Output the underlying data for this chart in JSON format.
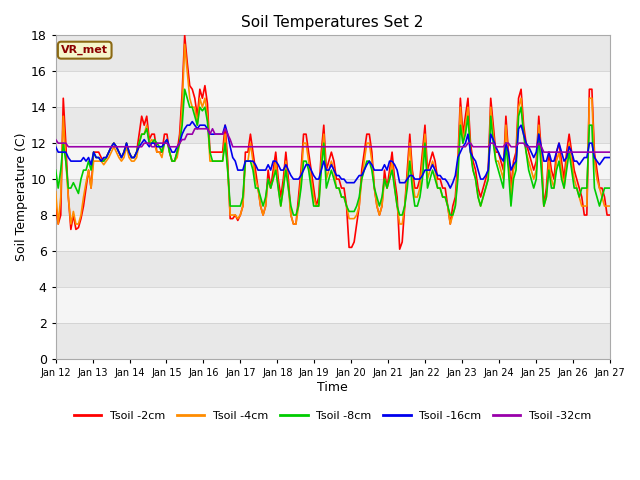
{
  "title": "Soil Temperatures Set 2",
  "xlabel": "Time",
  "ylabel": "Soil Temperature (C)",
  "ylim": [
    0,
    18
  ],
  "x_tick_labels": [
    "Jan 12",
    "Jan 13",
    "Jan 14",
    "Jan 15",
    "Jan 16",
    "Jan 17",
    "Jan 18",
    "Jan 19",
    "Jan 20",
    "Jan 21",
    "Jan 22",
    "Jan 23",
    "Jan 24",
    "Jan 25",
    "Jan 26",
    "Jan 27"
  ],
  "annotation": "VR_met",
  "colors": {
    "Tsoil -2cm": "#ff0000",
    "Tsoil -4cm": "#ff8c00",
    "Tsoil -8cm": "#00cc00",
    "Tsoil -16cm": "#0000ee",
    "Tsoil -32cm": "#9900aa"
  },
  "tsoil_2cm": [
    8.5,
    7.5,
    8.0,
    14.5,
    12.0,
    9.0,
    7.2,
    8.0,
    7.2,
    7.3,
    7.8,
    8.5,
    9.5,
    10.5,
    9.5,
    11.5,
    11.5,
    11.5,
    11.2,
    11.0,
    11.2,
    11.5,
    11.8,
    12.0,
    11.8,
    11.5,
    11.2,
    11.5,
    12.0,
    11.5,
    11.2,
    11.2,
    11.5,
    12.5,
    13.5,
    13.0,
    13.5,
    12.2,
    12.5,
    12.5,
    11.5,
    11.5,
    11.5,
    12.5,
    12.5,
    11.5,
    11.0,
    11.0,
    11.5,
    12.5,
    14.8,
    18.0,
    16.5,
    15.2,
    15.0,
    14.5,
    13.5,
    15.0,
    14.5,
    15.2,
    14.2,
    11.5,
    11.5,
    11.5,
    11.5,
    11.5,
    11.5,
    13.0,
    11.0,
    7.8,
    7.8,
    8.0,
    7.7,
    8.0,
    8.5,
    11.5,
    11.5,
    12.5,
    11.5,
    10.5,
    9.5,
    8.5,
    8.0,
    8.5,
    10.5,
    9.5,
    10.5,
    11.5,
    10.0,
    9.0,
    10.0,
    11.5,
    10.0,
    8.0,
    7.5,
    7.5,
    9.0,
    10.5,
    12.5,
    12.5,
    11.5,
    10.5,
    9.5,
    8.5,
    9.0,
    11.5,
    13.0,
    10.5,
    11.0,
    11.5,
    11.0,
    10.0,
    10.0,
    9.5,
    9.5,
    8.5,
    6.2,
    6.2,
    6.5,
    7.5,
    8.5,
    10.5,
    11.5,
    12.5,
    12.5,
    11.5,
    9.5,
    8.5,
    8.0,
    8.5,
    10.5,
    9.5,
    10.5,
    11.5,
    10.0,
    9.0,
    6.1,
    6.5,
    8.5,
    10.5,
    12.5,
    10.5,
    9.5,
    9.5,
    10.0,
    11.5,
    13.0,
    10.5,
    11.0,
    11.5,
    11.0,
    10.0,
    10.0,
    9.5,
    9.5,
    8.5,
    7.5,
    8.5,
    9.0,
    11.0,
    14.5,
    12.5,
    13.5,
    14.5,
    12.0,
    11.0,
    10.5,
    9.5,
    9.0,
    9.5,
    10.0,
    10.5,
    14.5,
    13.0,
    11.5,
    11.5,
    11.0,
    10.5,
    13.5,
    11.5,
    9.5,
    11.0,
    11.5,
    14.5,
    15.0,
    13.0,
    12.0,
    11.5,
    11.0,
    10.5,
    11.0,
    13.5,
    11.5,
    8.5,
    9.5,
    11.5,
    10.5,
    10.0,
    11.5,
    12.0,
    11.0,
    10.0,
    11.5,
    12.5,
    11.5,
    10.5,
    10.0,
    9.5,
    9.0,
    8.0,
    8.0,
    15.0,
    15.0,
    11.5,
    10.5,
    9.5,
    9.5,
    9.0,
    8.0,
    8.0
  ],
  "tsoil_4cm": [
    9.3,
    7.5,
    9.0,
    13.5,
    11.0,
    9.0,
    7.5,
    8.2,
    7.5,
    7.5,
    8.0,
    9.0,
    9.8,
    10.5,
    9.5,
    11.0,
    11.0,
    11.0,
    11.0,
    10.8,
    11.0,
    11.2,
    11.5,
    11.8,
    11.5,
    11.2,
    11.0,
    11.2,
    11.8,
    11.2,
    11.0,
    11.0,
    11.2,
    12.0,
    12.5,
    12.5,
    13.0,
    12.0,
    12.2,
    12.0,
    11.5,
    11.5,
    11.2,
    12.0,
    12.2,
    11.5,
    11.0,
    11.0,
    11.2,
    12.0,
    14.0,
    17.5,
    16.0,
    14.5,
    14.0,
    14.0,
    13.0,
    14.5,
    14.0,
    14.5,
    13.5,
    11.0,
    11.0,
    11.0,
    11.0,
    11.0,
    11.0,
    12.5,
    10.5,
    8.0,
    8.0,
    8.0,
    7.8,
    8.0,
    8.5,
    11.0,
    11.0,
    12.0,
    11.0,
    10.0,
    9.5,
    8.5,
    8.0,
    8.5,
    10.0,
    9.5,
    10.0,
    11.0,
    9.5,
    8.5,
    9.5,
    11.0,
    9.5,
    8.0,
    7.5,
    7.5,
    8.5,
    10.0,
    12.0,
    12.0,
    11.0,
    10.0,
    9.0,
    8.5,
    8.5,
    11.0,
    12.5,
    10.0,
    10.5,
    11.0,
    10.5,
    9.5,
    9.5,
    9.0,
    9.0,
    8.5,
    7.8,
    7.8,
    7.8,
    8.0,
    8.5,
    10.0,
    11.0,
    12.0,
    12.0,
    11.0,
    9.5,
    8.5,
    8.0,
    8.5,
    10.0,
    9.5,
    10.0,
    11.0,
    9.5,
    8.5,
    7.5,
    7.5,
    8.5,
    10.0,
    12.0,
    10.0,
    9.0,
    9.0,
    9.5,
    11.0,
    12.5,
    10.0,
    10.5,
    11.0,
    10.5,
    9.5,
    9.5,
    9.0,
    9.0,
    8.5,
    7.5,
    8.0,
    8.5,
    10.5,
    14.0,
    12.0,
    13.0,
    14.0,
    11.5,
    10.5,
    10.0,
    9.0,
    8.5,
    9.0,
    9.5,
    10.0,
    14.0,
    12.5,
    11.0,
    11.0,
    10.5,
    10.0,
    13.0,
    11.0,
    9.0,
    10.5,
    11.0,
    14.0,
    14.5,
    12.5,
    11.5,
    11.0,
    10.5,
    10.0,
    10.5,
    13.0,
    11.0,
    8.5,
    9.0,
    11.0,
    10.0,
    9.5,
    11.0,
    11.5,
    10.5,
    9.5,
    11.0,
    12.0,
    11.0,
    10.0,
    9.5,
    9.0,
    8.5,
    8.5,
    8.5,
    14.5,
    14.5,
    11.0,
    10.0,
    9.5,
    9.0,
    8.5,
    8.5,
    8.5
  ],
  "tsoil_8cm": [
    10.5,
    9.5,
    10.5,
    12.0,
    11.0,
    9.5,
    9.5,
    9.8,
    9.5,
    9.2,
    10.0,
    10.5,
    10.5,
    11.0,
    10.5,
    11.5,
    11.2,
    11.2,
    11.0,
    11.0,
    11.2,
    11.5,
    11.8,
    12.0,
    11.8,
    11.5,
    11.2,
    11.5,
    12.0,
    11.5,
    11.2,
    11.2,
    11.5,
    12.0,
    12.5,
    12.5,
    12.8,
    12.0,
    12.0,
    12.2,
    12.0,
    11.8,
    11.5,
    12.0,
    12.2,
    11.5,
    11.0,
    11.0,
    11.5,
    12.0,
    13.0,
    15.0,
    14.5,
    14.0,
    14.0,
    13.5,
    13.0,
    14.0,
    13.8,
    14.0,
    13.2,
    11.5,
    11.0,
    11.0,
    11.0,
    11.0,
    11.0,
    12.0,
    10.5,
    8.5,
    8.5,
    8.5,
    8.5,
    8.5,
    9.0,
    11.0,
    11.0,
    11.0,
    10.5,
    9.5,
    9.5,
    9.0,
    8.5,
    9.0,
    10.0,
    9.5,
    10.0,
    10.5,
    9.5,
    8.5,
    9.5,
    10.5,
    9.5,
    8.5,
    8.0,
    8.0,
    8.5,
    9.5,
    11.0,
    11.0,
    10.5,
    9.5,
    8.5,
    8.5,
    8.5,
    10.5,
    12.0,
    9.5,
    10.0,
    10.5,
    10.0,
    9.5,
    9.5,
    9.0,
    9.0,
    8.5,
    8.2,
    8.2,
    8.2,
    8.5,
    9.0,
    10.0,
    10.5,
    11.0,
    11.0,
    10.5,
    9.5,
    9.0,
    8.5,
    9.0,
    10.0,
    9.5,
    10.0,
    10.5,
    9.5,
    8.5,
    8.0,
    8.0,
    8.5,
    9.5,
    11.0,
    9.5,
    8.5,
    8.5,
    9.0,
    10.0,
    12.0,
    9.5,
    10.0,
    10.5,
    10.0,
    9.5,
    9.5,
    9.0,
    9.0,
    8.5,
    8.0,
    8.0,
    8.5,
    10.0,
    13.0,
    12.0,
    12.5,
    13.5,
    11.5,
    10.5,
    10.0,
    9.0,
    8.5,
    9.0,
    9.5,
    10.0,
    13.5,
    12.0,
    11.0,
    10.5,
    10.0,
    9.5,
    12.0,
    10.5,
    8.5,
    10.0,
    10.5,
    13.5,
    14.0,
    12.5,
    11.5,
    10.5,
    10.0,
    9.5,
    10.0,
    12.5,
    10.5,
    8.5,
    9.0,
    10.5,
    9.5,
    9.5,
    10.5,
    11.0,
    10.0,
    9.5,
    10.5,
    11.5,
    10.5,
    9.5,
    9.5,
    9.0,
    9.5,
    9.5,
    9.5,
    13.0,
    13.0,
    9.5,
    9.0,
    8.5,
    9.0,
    9.5,
    9.5,
    9.5
  ],
  "tsoil_16cm": [
    11.8,
    11.5,
    11.5,
    11.5,
    11.5,
    11.2,
    11.0,
    11.0,
    11.0,
    11.0,
    11.0,
    11.2,
    11.0,
    11.2,
    10.8,
    11.5,
    11.2,
    11.2,
    11.0,
    11.2,
    11.2,
    11.5,
    11.8,
    12.0,
    11.8,
    11.5,
    11.2,
    11.5,
    12.0,
    11.5,
    11.2,
    11.2,
    11.5,
    11.8,
    12.0,
    12.2,
    12.0,
    11.8,
    12.0,
    12.0,
    11.8,
    11.8,
    11.8,
    12.0,
    12.2,
    11.8,
    11.5,
    11.5,
    11.8,
    12.0,
    12.5,
    12.8,
    13.0,
    13.0,
    13.2,
    13.0,
    12.8,
    13.0,
    13.0,
    13.0,
    12.8,
    12.5,
    12.5,
    12.5,
    12.5,
    12.5,
    12.5,
    13.0,
    12.5,
    11.8,
    11.2,
    11.0,
    10.5,
    10.5,
    10.5,
    11.0,
    11.0,
    11.0,
    11.0,
    10.8,
    10.5,
    10.5,
    10.5,
    10.5,
    10.8,
    10.5,
    11.0,
    11.0,
    10.8,
    10.5,
    10.5,
    10.8,
    10.5,
    10.2,
    10.0,
    10.0,
    10.0,
    10.2,
    10.5,
    10.8,
    10.8,
    10.5,
    10.2,
    10.0,
    10.0,
    10.5,
    11.0,
    10.5,
    10.5,
    10.8,
    10.5,
    10.2,
    10.2,
    10.0,
    10.0,
    9.8,
    9.8,
    9.8,
    9.8,
    10.0,
    10.2,
    10.2,
    10.5,
    10.8,
    11.0,
    10.8,
    10.5,
    10.5,
    10.5,
    10.5,
    10.8,
    10.5,
    11.0,
    11.0,
    10.8,
    10.5,
    9.8,
    9.8,
    9.8,
    10.0,
    10.2,
    10.2,
    10.0,
    10.0,
    10.0,
    10.2,
    10.5,
    10.5,
    10.5,
    10.8,
    10.5,
    10.2,
    10.2,
    10.0,
    10.0,
    9.8,
    9.5,
    9.8,
    10.2,
    11.2,
    11.5,
    11.8,
    12.0,
    12.5,
    11.5,
    11.2,
    11.0,
    10.5,
    10.0,
    10.0,
    10.2,
    10.5,
    12.5,
    12.2,
    11.8,
    11.5,
    11.2,
    11.0,
    12.0,
    11.5,
    10.5,
    10.8,
    11.0,
    12.8,
    13.0,
    12.5,
    12.0,
    11.8,
    11.5,
    11.2,
    11.5,
    12.5,
    11.8,
    11.0,
    11.0,
    11.5,
    11.0,
    11.0,
    11.5,
    12.0,
    11.5,
    11.0,
    11.2,
    11.8,
    11.5,
    11.0,
    11.0,
    10.8,
    11.0,
    11.2,
    11.2,
    12.0,
    12.0,
    11.2,
    11.0,
    10.8,
    11.0,
    11.2,
    11.2,
    11.2
  ],
  "tsoil_32cm": [
    12.2,
    12.0,
    12.0,
    12.0,
    12.0,
    11.8,
    11.8,
    11.8,
    11.8,
    11.8,
    11.8,
    11.8,
    11.8,
    11.8,
    11.8,
    11.8,
    11.8,
    11.8,
    11.8,
    11.8,
    11.8,
    11.8,
    11.8,
    11.8,
    11.8,
    11.8,
    11.8,
    11.8,
    11.8,
    11.8,
    11.8,
    11.8,
    11.8,
    11.8,
    11.8,
    12.0,
    12.0,
    12.0,
    11.8,
    11.8,
    12.0,
    12.0,
    12.0,
    12.0,
    12.0,
    11.8,
    11.8,
    11.8,
    11.8,
    12.0,
    12.2,
    12.2,
    12.5,
    12.5,
    12.5,
    12.8,
    12.8,
    12.8,
    12.8,
    12.8,
    12.8,
    12.5,
    12.8,
    12.5,
    12.5,
    12.5,
    12.5,
    12.8,
    12.5,
    12.2,
    11.8,
    11.8,
    11.8,
    11.8,
    11.8,
    11.8,
    11.8,
    11.8,
    11.8,
    11.8,
    11.8,
    11.8,
    11.8,
    11.8,
    11.8,
    11.8,
    11.8,
    11.8,
    11.8,
    11.8,
    11.8,
    11.8,
    11.8,
    11.8,
    11.8,
    11.8,
    11.8,
    11.8,
    11.8,
    11.8,
    11.8,
    11.8,
    11.8,
    11.8,
    11.8,
    11.8,
    11.8,
    11.8,
    11.8,
    11.8,
    11.8,
    11.8,
    11.8,
    11.8,
    11.8,
    11.8,
    11.8,
    11.8,
    11.8,
    11.8,
    11.8,
    11.8,
    11.8,
    11.8,
    11.8,
    11.8,
    11.8,
    11.8,
    11.8,
    11.8,
    11.8,
    11.8,
    11.8,
    11.8,
    11.8,
    11.8,
    11.8,
    11.8,
    11.8,
    11.8,
    11.8,
    11.8,
    11.8,
    11.8,
    11.8,
    11.8,
    11.8,
    11.8,
    11.8,
    11.8,
    11.8,
    11.8,
    11.8,
    11.8,
    11.8,
    11.8,
    11.8,
    11.8,
    11.8,
    11.8,
    11.8,
    11.8,
    11.8,
    12.0,
    12.0,
    11.8,
    11.8,
    11.8,
    11.8,
    11.8,
    11.8,
    11.8,
    12.0,
    12.0,
    11.8,
    11.8,
    11.8,
    11.8,
    12.0,
    12.0,
    11.8,
    11.8,
    11.8,
    12.0,
    12.0,
    12.0,
    11.8,
    11.8,
    11.8,
    11.8,
    11.8,
    12.0,
    11.8,
    11.5,
    11.5,
    11.5,
    11.5,
    11.5,
    11.5,
    11.5,
    11.5,
    11.5,
    11.5,
    11.5,
    11.5,
    11.5,
    11.5,
    11.5,
    11.5,
    11.5,
    11.5,
    11.5,
    11.5,
    11.5,
    11.5,
    11.5,
    11.5,
    11.5,
    11.5,
    11.5
  ]
}
